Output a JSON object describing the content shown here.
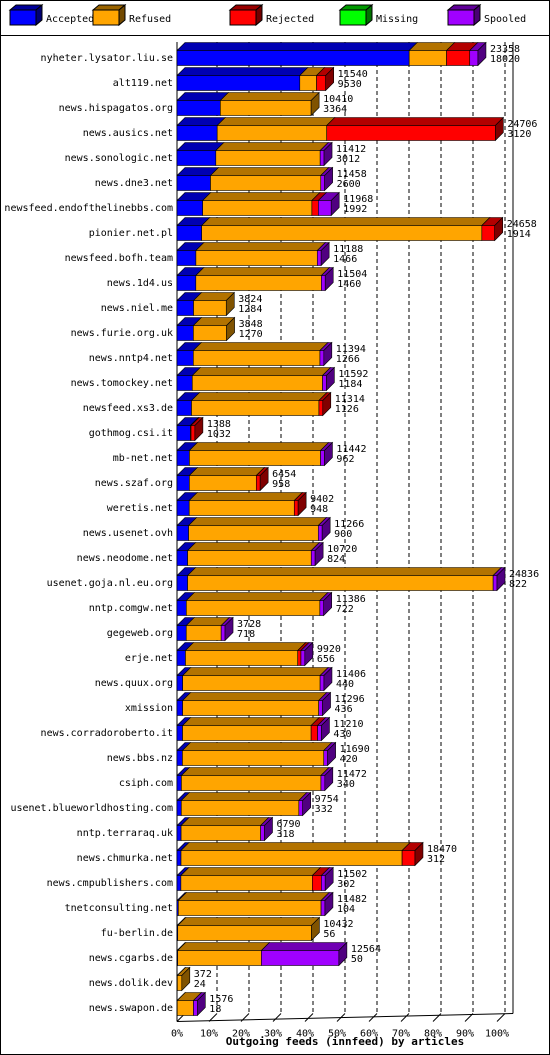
{
  "chart_data": {
    "type": "stacked-bar-3d",
    "orientation": "horizontal",
    "xlabel": "Outgoing feeds (innfeed) by articles",
    "categories": [
      "nyheter.lysator.liu.se",
      "alt119.net",
      "news.hispagatos.org",
      "news.ausics.net",
      "news.sonologic.net",
      "news.dne3.net",
      "newsfeed.endofthelinebbs.com",
      "pionier.net.pl",
      "newsfeed.bofh.team",
      "news.1d4.us",
      "news.niel.me",
      "news.furie.org.uk",
      "news.nntp4.net",
      "news.tomockey.net",
      "newsfeed.xs3.de",
      "gothmog.csi.it",
      "mb-net.net",
      "news.szaf.org",
      "weretis.net",
      "news.usenet.ovh",
      "news.neodome.net",
      "usenet.goja.nl.eu.org",
      "nntp.comgw.net",
      "gegeweb.org",
      "erje.net",
      "news.quux.org",
      "xmission",
      "news.corradoroberto.it",
      "news.bbs.nz",
      "csiph.com",
      "usenet.blueworldhosting.com",
      "nntp.terraraq.uk",
      "news.chmurka.net",
      "news.cmpublishers.com",
      "tnetconsulting.net",
      "fu-berlin.de",
      "news.cgarbs.de",
      "news.dolik.dev",
      "news.swapon.de"
    ],
    "totals": [
      23358,
      11540,
      10410,
      24706,
      11412,
      11458,
      11968,
      24658,
      11188,
      11504,
      3824,
      3848,
      11394,
      11592,
      11314,
      1388,
      11442,
      6454,
      9402,
      11266,
      10720,
      24836,
      11386,
      3728,
      9920,
      11406,
      11296,
      11210,
      11690,
      11472,
      9754,
      6790,
      18470,
      11502,
      11482,
      10432,
      12564,
      372,
      1576
    ],
    "series": [
      {
        "name": "Accepted",
        "color": "#0000ff",
        "values": [
          18020,
          9530,
          3364,
          3120,
          3012,
          2600,
          1992,
          1914,
          1466,
          1460,
          1284,
          1270,
          1266,
          1184,
          1126,
          1032,
          962,
          958,
          948,
          900,
          824,
          822,
          722,
          718,
          656,
          440,
          436,
          430,
          420,
          340,
          332,
          318,
          312,
          302,
          104,
          56,
          50,
          24,
          18
        ]
      },
      {
        "name": "Refused",
        "color": "#ffa500",
        "values": [
          2900,
          1300,
          7046,
          8500,
          8100,
          8558,
          8476,
          21744,
          9422,
          9744,
          2540,
          2578,
          9828,
          10108,
          9888,
          56,
          10180,
          5196,
          8154,
          10066,
          9596,
          23714,
          10364,
          2710,
          8714,
          10666,
          10560,
          9980,
          10970,
          10832,
          9122,
          6172,
          17158,
          10200,
          11078,
          10376,
          6500,
          348,
          1258
        ]
      },
      {
        "name": "Rejected",
        "color": "#ff0000",
        "values": [
          1800,
          710,
          0,
          13086,
          0,
          0,
          500,
          1000,
          0,
          0,
          0,
          0,
          0,
          0,
          300,
          300,
          0,
          300,
          300,
          0,
          0,
          0,
          0,
          0,
          250,
          0,
          0,
          500,
          0,
          0,
          0,
          0,
          1000,
          700,
          0,
          0,
          0,
          0,
          0
        ]
      },
      {
        "name": "Missing",
        "color": "#00ff00",
        "values": [
          0,
          0,
          0,
          0,
          0,
          0,
          0,
          0,
          0,
          0,
          0,
          0,
          0,
          0,
          0,
          0,
          0,
          0,
          0,
          0,
          0,
          0,
          0,
          0,
          0,
          0,
          0,
          0,
          0,
          0,
          0,
          0,
          0,
          0,
          0,
          0,
          0,
          0,
          0
        ]
      },
      {
        "name": "Spooled",
        "color": "#a000ff",
        "values": [
          638,
          0,
          0,
          0,
          300,
          300,
          1000,
          0,
          300,
          300,
          0,
          0,
          300,
          300,
          0,
          0,
          300,
          0,
          0,
          300,
          300,
          300,
          300,
          300,
          300,
          300,
          300,
          300,
          300,
          300,
          300,
          300,
          0,
          300,
          300,
          0,
          6014,
          0,
          300
        ]
      }
    ],
    "xlim": [
      0,
      24836
    ],
    "xticks": [
      {
        "value": 0,
        "label": "0%"
      },
      {
        "value": 2483.6,
        "label": "10%"
      },
      {
        "value": 4967.2,
        "label": "20%"
      },
      {
        "value": 7450.8,
        "label": "30%"
      },
      {
        "value": 9934.4,
        "label": "40%"
      },
      {
        "value": 12418,
        "label": "50%"
      },
      {
        "value": 14901.6,
        "label": "60%"
      },
      {
        "value": 17385.2,
        "label": "70%"
      },
      {
        "value": 19868.8,
        "label": "80%"
      },
      {
        "value": 22352.4,
        "label": "90%"
      },
      {
        "value": 24836,
        "label": "100%"
      }
    ],
    "grid": true,
    "legend": "top"
  }
}
